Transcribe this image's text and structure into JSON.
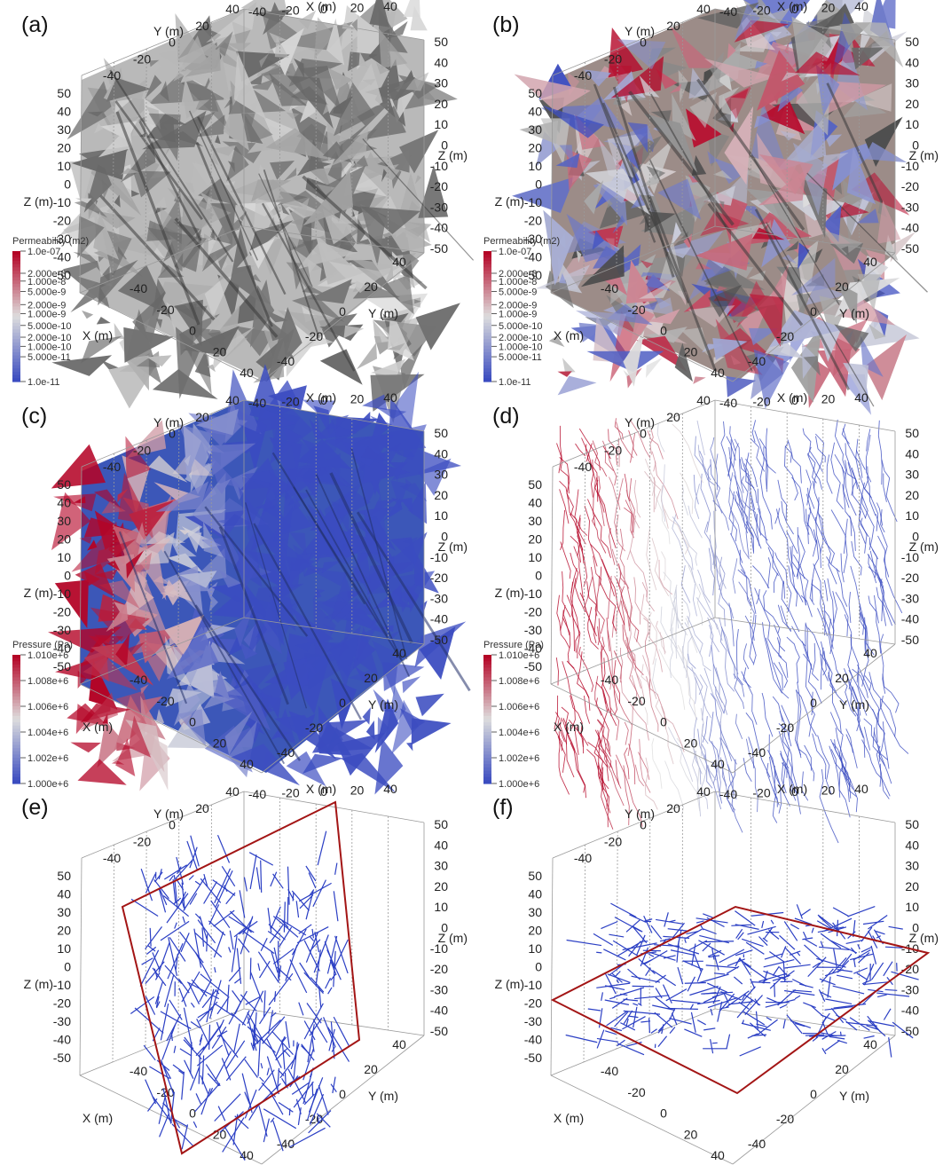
{
  "axes": {
    "x_label": "X (m)",
    "y_label": "Y (m)",
    "z_label": "Z (m)",
    "x_ticks_top": [
      "-40",
      "-20",
      "0",
      "20",
      "40"
    ],
    "y_ticks_top": [
      "-40",
      "-20",
      "0",
      "20",
      "40"
    ],
    "z_ticks_left": [
      "50",
      "40",
      "30",
      "20",
      "10",
      "0",
      "-10",
      "-20",
      "-30",
      "-40",
      "-50"
    ],
    "z_ticks_right": [
      "50",
      "40",
      "30",
      "20",
      "10",
      "0",
      "-10",
      "-20",
      "-30",
      "-40",
      "-50"
    ],
    "x_ticks_bottom": [
      "-40",
      "-20",
      "0",
      "20",
      "40"
    ],
    "y_ticks_bottom": [
      "40",
      "20",
      "0",
      "-20",
      "-40"
    ]
  },
  "legends": {
    "permeability": {
      "title": "Permeability (m2)",
      "ticks": [
        "1.0e-07",
        "2.000e-8",
        "1.000e-8",
        "5.000e-9",
        "2.000e-9",
        "1.000e-9",
        "5.000e-10",
        "2.000e-10",
        "1.000e-10",
        "5.000e-11",
        "1.0e-11"
      ]
    },
    "pressure": {
      "title": "Pressure (Pa)",
      "ticks": [
        "1.010e+6",
        "1.008e+6",
        "1.006e+6",
        "1.004e+6",
        "1.002e+6",
        "1.000e+6"
      ]
    }
  },
  "panels": [
    {
      "label": "(a)",
      "kind": "dfn-gray",
      "legend": "permeability"
    },
    {
      "label": "(b)",
      "kind": "dfn-permeability",
      "legend": "permeability"
    },
    {
      "label": "(c)",
      "kind": "dfn-pressure",
      "legend": "pressure"
    },
    {
      "label": "(d)",
      "kind": "streamlines-pressure",
      "legend": "pressure"
    },
    {
      "label": "(e)",
      "kind": "trace-vertical-plane",
      "legend": null
    },
    {
      "label": "(f)",
      "kind": "trace-horizontal-plane",
      "legend": null
    }
  ],
  "colors": {
    "gray_light": "#c9c9c9",
    "gray_dark": "#5a5a5a",
    "red": "#b40426",
    "blue": "#3b4cc0",
    "plane": "#a31515",
    "trace": "#2b3fc4"
  }
}
